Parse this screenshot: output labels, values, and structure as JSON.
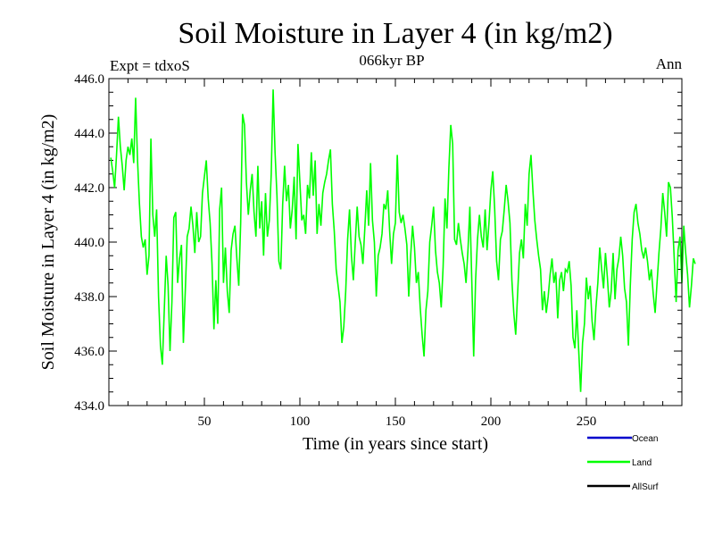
{
  "chart_data": {
    "type": "line",
    "title": "Soil Moisture in Layer 4 (in kg/m2)",
    "subtitle": "066kyr BP",
    "left_note": "Expt = tdxoS",
    "right_note": "Ann",
    "xlabel": "Time (in years since start)",
    "ylabel": "Soil Moisture in Layer 4 (in kg/m2)",
    "xlim": [
      0,
      300
    ],
    "ylim": [
      434.0,
      446.0
    ],
    "x_ticks": [
      50,
      100,
      150,
      200,
      250
    ],
    "x_tick_labels": [
      "50",
      "100",
      "150",
      "200",
      "250"
    ],
    "y_ticks": [
      434,
      436,
      438,
      440,
      442,
      444,
      446
    ],
    "y_tick_labels": [
      "434.0",
      "436.0",
      "438.0",
      "440.0",
      "442.0",
      "444.0",
      "446.0"
    ],
    "legend": [
      {
        "label": "Ocean",
        "color": "#0000cc"
      },
      {
        "label": "Land",
        "color": "#00ff00"
      },
      {
        "label": "AllSurf",
        "color": "#000000"
      }
    ],
    "legend_position": "bottom-right",
    "series": [
      {
        "name": "Land",
        "color": "#00ff00",
        "x_start": 1,
        "x_step": 1,
        "values": [
          443.1,
          442.6,
          442.0,
          443.2,
          444.6,
          443.5,
          442.8,
          441.9,
          443.0,
          443.5,
          443.2,
          443.8,
          442.9,
          445.3,
          443.0,
          441.4,
          440.2,
          439.8,
          440.1,
          438.8,
          439.5,
          443.8,
          441.0,
          440.2,
          441.2,
          438.0,
          436.2,
          435.5,
          437.5,
          439.5,
          438.4,
          436.0,
          437.8,
          440.9,
          441.1,
          438.5,
          439.4,
          439.9,
          436.3,
          438.2,
          440.2,
          440.5,
          441.3,
          440.6,
          439.6,
          441.1,
          440.0,
          440.2,
          441.8,
          442.4,
          443.0,
          441.6,
          440.7,
          439.2,
          436.8,
          438.6,
          437.0,
          441.2,
          442.0,
          438.5,
          439.8,
          438.2,
          437.4,
          439.7,
          440.3,
          440.6,
          439.4,
          438.4,
          440.7,
          444.7,
          444.3,
          442.2,
          441.0,
          441.9,
          442.5,
          441.1,
          440.2,
          442.8,
          440.5,
          441.5,
          439.5,
          441.8,
          440.2,
          440.8,
          442.5,
          445.6,
          443.3,
          441.7,
          439.3,
          439.0,
          441.4,
          442.8,
          441.5,
          442.1,
          440.5,
          441.2,
          442.4,
          440.1,
          443.6,
          442.2,
          440.8,
          441.0,
          440.3,
          442.1,
          441.6,
          443.3,
          441.7,
          443.0,
          440.3,
          441.4,
          440.6,
          441.8,
          442.2,
          442.5,
          443.0,
          443.4,
          441.4,
          440.4,
          439.0,
          438.4,
          437.8,
          436.3,
          436.9,
          438.2,
          440.1,
          441.2,
          439.5,
          438.6,
          440.0,
          441.3,
          440.2,
          439.9,
          439.2,
          440.5,
          441.9,
          440.6,
          442.9,
          440.8,
          440.0,
          438.0,
          439.5,
          439.8,
          440.3,
          441.4,
          441.2,
          441.9,
          440.4,
          439.2,
          440.3,
          440.7,
          443.2,
          441.1,
          440.7,
          441.0,
          440.5,
          439.9,
          438.0,
          439.5,
          440.6,
          439.8,
          438.5,
          438.9,
          437.6,
          436.6,
          435.8,
          437.5,
          438.2,
          440.0,
          440.6,
          441.3,
          439.7,
          438.9,
          438.5,
          437.6,
          439.1,
          441.6,
          440.5,
          442.7,
          444.3,
          443.6,
          440.1,
          439.9,
          440.7,
          440.1,
          439.6,
          439.2,
          438.5,
          439.7,
          441.3,
          438.6,
          435.8,
          438.6,
          440.1,
          441.0,
          440.2,
          439.8,
          441.2,
          439.7,
          440.7,
          441.9,
          442.6,
          441.2,
          439.3,
          438.6,
          440.1,
          440.4,
          441.2,
          442.1,
          441.5,
          440.7,
          438.6,
          437.4,
          436.6,
          438.1,
          439.6,
          440.1,
          439.4,
          441.4,
          440.6,
          442.5,
          443.2,
          441.9,
          440.8,
          440.1,
          439.5,
          439.0,
          437.5,
          438.2,
          437.4,
          438.0,
          438.8,
          439.4,
          438.5,
          438.9,
          437.2,
          438.6,
          438.9,
          438.2,
          439.0,
          438.9,
          439.3,
          438.4,
          436.5,
          436.1,
          437.5,
          436.0,
          434.5,
          436.3,
          437.0,
          438.7,
          437.9,
          438.4,
          437.1,
          436.4,
          437.6,
          438.5,
          439.8,
          439.0,
          438.3,
          439.6,
          438.7,
          437.6,
          438.2,
          439.6,
          437.9,
          439.0,
          439.4,
          440.2,
          439.5,
          438.3,
          437.8,
          436.2,
          438.4,
          440.1,
          441.1,
          441.4,
          440.7,
          440.3,
          439.7,
          439.4,
          439.8,
          439.3,
          438.6,
          439.0,
          438.1,
          437.4,
          438.5,
          439.6,
          440.5,
          441.8,
          441.1,
          440.2,
          442.2,
          442.0,
          440.9,
          439.4,
          437.8,
          439.7,
          440.2,
          438.5,
          440.6,
          439.6,
          438.8,
          437.6,
          438.4,
          439.4,
          439.2
        ]
      },
      {
        "name": "Ocean",
        "color": "#0000cc",
        "values": []
      },
      {
        "name": "AllSurf",
        "color": "#000000",
        "values": []
      }
    ]
  }
}
